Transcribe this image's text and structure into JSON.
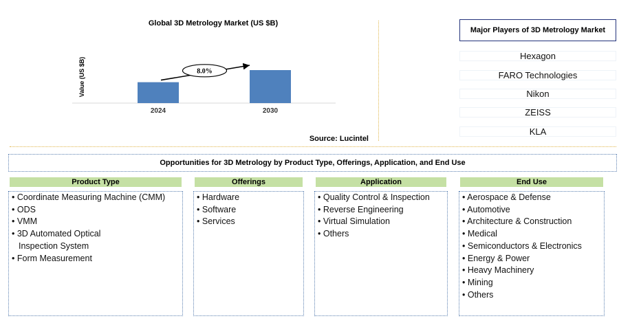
{
  "chart_data": {
    "type": "bar",
    "title": "Global 3D Metrology Market (US $B)",
    "categories": [
      "2024",
      "2030"
    ],
    "values": [
      38,
      60
    ],
    "ylabel": "Value (US $B)",
    "xlabel": "",
    "ylim": [
      0,
      100
    ],
    "grid": false,
    "bar_color": "#4f81bd",
    "annotation": "8.0%",
    "source": "Source: Lucintel"
  },
  "players": {
    "title": "Major Players of 3D Metrology Market",
    "items": [
      "Hexagon",
      "FARO Technologies",
      "Nikon",
      "ZEISS",
      "KLA"
    ]
  },
  "opportunities": {
    "title": "Opportunities for 3D Metrology by Product Type, Offerings, Application, and End Use",
    "header_color": "#c5e0a4",
    "categories": [
      {
        "name": "Product Type",
        "items": [
          "Coordinate Measuring Machine (CMM)",
          "ODS",
          "VMM",
          "3D Automated Optical Inspection System",
          "Form Measurement"
        ]
      },
      {
        "name": "Offerings",
        "items": [
          "Hardware",
          "Software",
          "Services"
        ]
      },
      {
        "name": "Application",
        "items": [
          "Quality Control & Inspection",
          "Reverse Engineering",
          "Virtual Simulation",
          "Others"
        ]
      },
      {
        "name": "End Use",
        "items": [
          "Aerospace & Defense",
          "Automotive",
          "Architecture & Construction",
          "Medical",
          "Semiconductors & Electronics",
          "Energy & Power",
          "Heavy Machinery",
          "Mining",
          "Others"
        ]
      }
    ]
  }
}
